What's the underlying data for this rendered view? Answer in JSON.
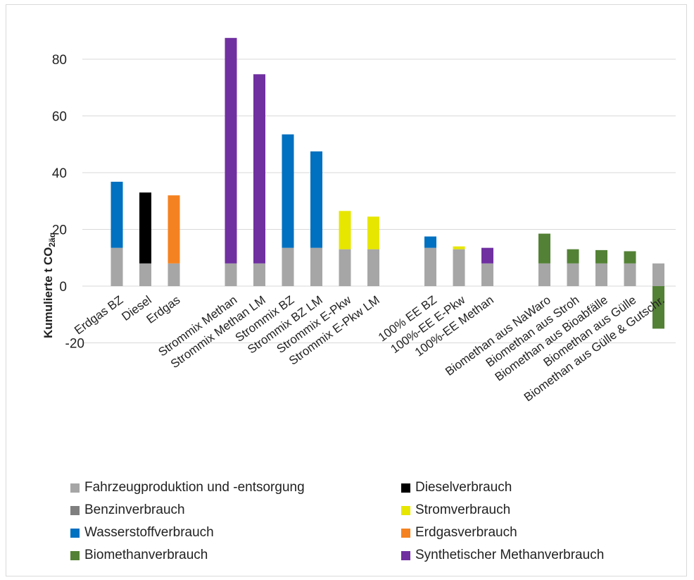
{
  "chart_data": {
    "type": "bar",
    "stacked": true,
    "ylabel_main": "Kumulierte t CO",
    "ylabel_sub": "2äq",
    "ylim": [
      -20,
      90
    ],
    "yticks": [
      0,
      20,
      40,
      60,
      80
    ],
    "tick_labels": [
      "0",
      "20",
      "40",
      "60",
      "80",
      "-20"
    ],
    "grid": true,
    "categories": [
      "Erdgas BZ",
      "Diesel",
      "Erdgas",
      "",
      "Strommix Methan",
      "Strommix Methan LM",
      "Strommix BZ",
      "Strommix BZ LM",
      "Strommix E-Pkw",
      "Strommix E-Pkw LM",
      "",
      "100% EE BZ",
      "100%-EE E-Pkw",
      "100%-EE Methan",
      "",
      "Biomethan aus NaWaro",
      "Biomethan aus Stroh",
      "Biomethan aus Bioabfälle",
      "Biomethan aus Gülle",
      "Biomethan aus Gülle & Gutschr."
    ],
    "series": [
      {
        "name": "Fahrzeugproduktion und -entsorgung",
        "color": "#a6a6a6",
        "values": [
          13.5,
          8,
          8,
          null,
          8,
          8,
          13.5,
          13.5,
          13,
          13,
          null,
          13.5,
          13,
          8,
          null,
          8,
          8,
          8,
          8,
          8
        ]
      },
      {
        "name": "Dieselverbrauch",
        "color": "#000000",
        "values": [
          0,
          25,
          0,
          null,
          0,
          0,
          0,
          0,
          0,
          0,
          null,
          0,
          0,
          0,
          null,
          0,
          0,
          0,
          0,
          0
        ]
      },
      {
        "name": "Benzinverbrauch",
        "color": "#7f7f7f",
        "values": [
          0,
          0,
          0,
          null,
          0,
          0,
          0,
          0,
          0,
          0,
          null,
          0,
          0,
          0,
          null,
          0,
          0,
          0,
          0,
          0
        ]
      },
      {
        "name": "Stromverbrauch",
        "color": "#e6e600",
        "values": [
          0,
          0,
          0,
          null,
          0,
          0,
          0,
          0,
          13.5,
          11.5,
          null,
          0,
          1,
          0,
          null,
          0,
          0,
          0,
          0,
          0
        ]
      },
      {
        "name": "Wasserstoffverbrauch",
        "color": "#0070c0",
        "values": [
          23.3,
          0,
          0,
          null,
          0,
          0,
          40,
          34,
          0,
          0,
          null,
          4,
          0,
          0,
          null,
          0,
          0,
          0,
          0,
          0
        ]
      },
      {
        "name": "Erdgasverbrauch",
        "color": "#f58220",
        "values": [
          0,
          0,
          24,
          null,
          0,
          0,
          0,
          0,
          0,
          0,
          null,
          0,
          0,
          0,
          null,
          0,
          0,
          0,
          0,
          0
        ]
      },
      {
        "name": "Biomethanverbrauch",
        "color": "#538135",
        "values": [
          0,
          0,
          0,
          null,
          0,
          0,
          0,
          0,
          0,
          0,
          null,
          0,
          0,
          0,
          null,
          10.5,
          5,
          4.7,
          4.3,
          -15
        ]
      },
      {
        "name": "Synthetischer Methanverbrauch",
        "color": "#7030a0",
        "values": [
          0,
          0,
          0,
          null,
          79.5,
          66.7,
          0,
          0,
          0,
          0,
          null,
          0,
          0,
          5.5,
          null,
          0,
          0,
          0,
          0,
          0
        ]
      }
    ],
    "legend_position": "bottom"
  }
}
